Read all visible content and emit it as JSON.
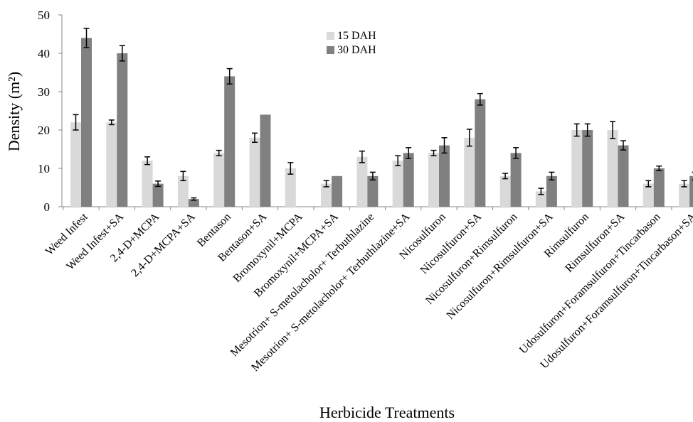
{
  "chart_data": {
    "type": "bar",
    "title": "",
    "xlabel": "Herbicide Treatments",
    "ylabel": "Density (m²)",
    "ylim": [
      0,
      50
    ],
    "yticks": [
      0,
      10,
      20,
      30,
      40,
      50
    ],
    "grid": false,
    "legend_position": "top-center",
    "categories": [
      "Weed Infest",
      "Weed Infest+SA",
      "2,4-D+MCPA",
      "2,4-D+MCPA+SA",
      "Bentason",
      "Bentason+SA",
      "Bromoxynil+MCPA",
      "Bromoxynil+MCPA+SA",
      "Mesotrion+ S-metolacholor+ Terbuthlazine",
      "Mesotrion+ S-metolacholor+ Terbuthlazine+SA",
      "Nicosulfuron",
      "Nicosulfuron+SA",
      "Nicosulfuron+Rimsulfuron",
      "Nicosulfuron+Rimsulfuron+SA",
      "Rimsulfuron",
      "Rimsulfuron+SA",
      "Udosulfuron+Foramsulfuron+Tincarbason",
      "Udosulfuron+Foramsulfuron+Tincarbason+SA"
    ],
    "series": [
      {
        "name": "15 DAH",
        "color": "#d9d9d9",
        "values": [
          22,
          22,
          12,
          8,
          14,
          18,
          10,
          6,
          13,
          12,
          14,
          18,
          8,
          4,
          20,
          20,
          6,
          6
        ],
        "errors": [
          2,
          0.6,
          1,
          1.2,
          0.7,
          1.2,
          1.5,
          0.8,
          1.5,
          1.3,
          0.7,
          2.2,
          0.7,
          0.8,
          1.6,
          2.2,
          0.8,
          0.8
        ]
      },
      {
        "name": "30 DAH",
        "color": "#808080",
        "values": [
          44,
          40,
          6,
          2,
          34,
          24,
          0,
          8,
          8,
          14,
          16,
          28,
          14,
          8,
          20,
          16,
          10,
          8
        ],
        "errors": [
          2.5,
          2,
          0.7,
          0.3,
          2,
          0,
          0,
          0,
          1,
          1.4,
          2,
          1.5,
          1.4,
          1,
          1.6,
          1.2,
          0.6,
          1
        ]
      }
    ]
  }
}
